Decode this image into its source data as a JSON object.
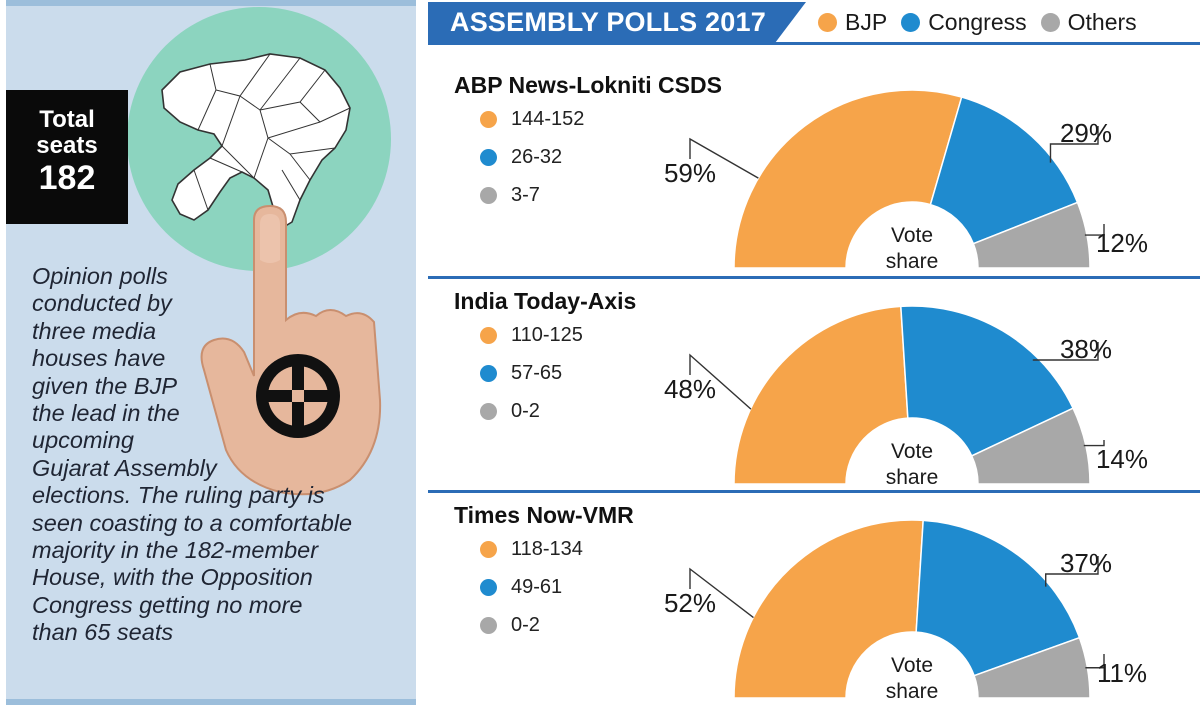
{
  "colors": {
    "bjp": "#f6a44a",
    "congress": "#1f8bcf",
    "others": "#a8a8a8",
    "accent": "#2b6cb6"
  },
  "left": {
    "total_label": "Total\nseats",
    "total_value": "182",
    "note_lines": [
      "Opinion polls",
      "conducted by",
      "three media",
      "houses have",
      "given the BJP",
      "the lead in the",
      "upcoming",
      "Gujarat Assembly",
      "elections. The ruling party is",
      "seen coasting to a comfortable",
      "majority in the 182-member",
      "House, with the Opposition",
      "Congress getting no more",
      "than 65 seats"
    ]
  },
  "header": {
    "title": "ASSEMBLY POLLS 2017"
  },
  "legend": [
    {
      "label": "BJP",
      "color": "#f6a44a"
    },
    {
      "label": "Congress",
      "color": "#1f8bcf"
    },
    {
      "label": "Others",
      "color": "#a8a8a8"
    }
  ],
  "center_label": "Vote\nshare",
  "chart_data": [
    {
      "type": "pie",
      "title": "ABP News-Lokniti CSDS",
      "categories": [
        "BJP",
        "Congress",
        "Others"
      ],
      "seats": [
        "144-152",
        "26-32",
        "3-7"
      ],
      "values": [
        59,
        29,
        12
      ],
      "labels": [
        "59%",
        "29%",
        "12%"
      ]
    },
    {
      "type": "pie",
      "title": "India Today-Axis",
      "categories": [
        "BJP",
        "Congress",
        "Others"
      ],
      "seats": [
        "110-125",
        "57-65",
        "0-2"
      ],
      "values": [
        48,
        38,
        14
      ],
      "labels": [
        "48%",
        "38%",
        "14%"
      ]
    },
    {
      "type": "pie",
      "title": "Times Now-VMR",
      "categories": [
        "BJP",
        "Congress",
        "Others"
      ],
      "seats": [
        "118-134",
        "49-61",
        "0-2"
      ],
      "values": [
        52,
        37,
        11
      ],
      "labels": [
        "52%",
        "37%",
        "11%"
      ]
    }
  ]
}
